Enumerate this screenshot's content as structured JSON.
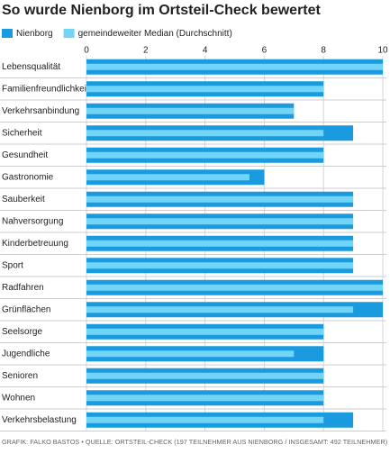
{
  "chart_data": {
    "type": "bar",
    "orientation": "horizontal",
    "title": "So wurde Nienborg im Ortsteil-Check bewertet",
    "categories": [
      "Lebensqualität",
      "Familienfreundlichkeit",
      "Verkehrsanbindung",
      "Sicherheit",
      "Gesundheit",
      "Gastronomie",
      "Sauberkeit",
      "Nahversorgung",
      "Kinderbetreuung",
      "Sport",
      "Radfahren",
      "Grünflächen",
      "Seelsorge",
      "Jugendliche",
      "Senioren",
      "Wohnen",
      "Verkehrsbelastung"
    ],
    "series": [
      {
        "name": "Nienborg",
        "color": "#1a9be0",
        "values": [
          10,
          8,
          7,
          9,
          8,
          6,
          9,
          9,
          9,
          9,
          10,
          10,
          8,
          8,
          8,
          8,
          9
        ]
      },
      {
        "name": "gemeindeweiter Median (Durchschnitt)",
        "color": "#72d4f6",
        "values": [
          10,
          8,
          7,
          8,
          8,
          5.5,
          9,
          9,
          9,
          9,
          10,
          9,
          8,
          7,
          8,
          8,
          8
        ]
      }
    ],
    "xlim": [
      0,
      10
    ],
    "xticks": [
      0,
      2,
      4,
      6,
      8,
      10
    ],
    "grid": true,
    "source": "GRAFIK: FALKO BASTOS • QUELLE: ORTSTEIL-CHECK (197 TEILNEHMER AUS NIENBORG / INSGESAMT: 492 TEILNEHMER)"
  }
}
